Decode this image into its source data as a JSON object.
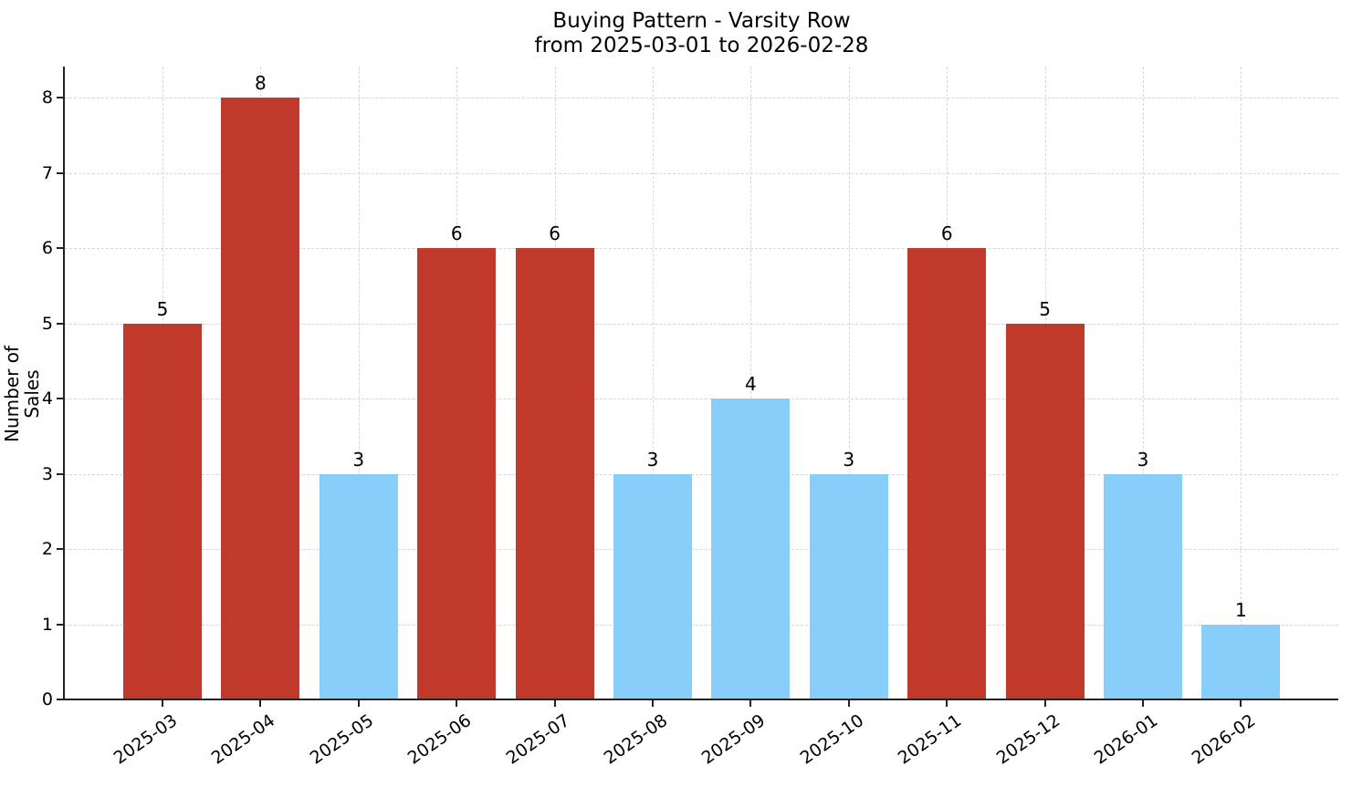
{
  "chart_data": {
    "type": "bar",
    "title": "Buying Pattern - Varsity Row",
    "subtitle": "from 2025-03-01 to 2026-02-28",
    "xlabel": "",
    "ylabel": "Number of Sales",
    "categories": [
      "2025-03",
      "2025-04",
      "2025-05",
      "2025-06",
      "2025-07",
      "2025-08",
      "2025-09",
      "2025-10",
      "2025-11",
      "2025-12",
      "2026-01",
      "2026-02"
    ],
    "values": [
      5,
      8,
      3,
      6,
      6,
      3,
      4,
      3,
      6,
      5,
      3,
      1
    ],
    "bar_colors": [
      "#c0392b",
      "#c0392b",
      "#87cefa",
      "#c0392b",
      "#c0392b",
      "#87cefa",
      "#87cefa",
      "#87cefa",
      "#c0392b",
      "#c0392b",
      "#87cefa",
      "#87cefa"
    ],
    "data_labels": [
      "5",
      "8",
      "3",
      "6",
      "6",
      "3",
      "4",
      "3",
      "6",
      "5",
      "3",
      "1"
    ],
    "yticks": [
      "0",
      "1",
      "2",
      "3",
      "4",
      "5",
      "6",
      "7",
      "8"
    ],
    "ylim": [
      0,
      8.4
    ],
    "grid": true,
    "legend": null
  },
  "colors": {
    "high": "#c0392b",
    "low": "#87cefa",
    "axis": "#222222",
    "grid": "#d6d6d6"
  }
}
